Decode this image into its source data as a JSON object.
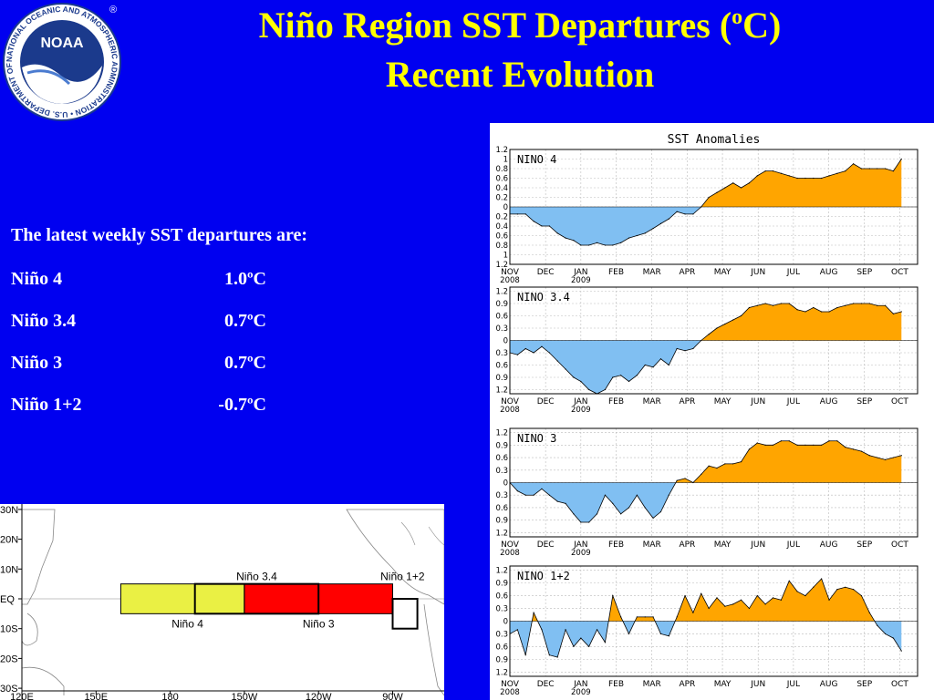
{
  "header": {
    "title_line1_main": "Niño Region SST Departures (",
    "title_line1_sup": "o",
    "title_line1_end": "C)",
    "title_line2": "Recent Evolution"
  },
  "logo": {
    "center_text": "NOAA",
    "ring_text": "NATIONAL OCEANIC AND ATMOSPHERIC ADMINISTRATION • U.S. DEPARTMENT OF COMMERCE",
    "registered_mark": "®",
    "colors": {
      "ring": "#ffffff",
      "inner": "#1b3a8c",
      "bird": "#ffffff"
    }
  },
  "summary": {
    "intro": "The latest weekly SST departures are:",
    "regions": [
      {
        "name": "Niño 4",
        "value": "1.0ºC"
      },
      {
        "name": "Niño 3.4",
        "value": "0.7ºC"
      },
      {
        "name": "Niño 3",
        "value": "0.7ºC"
      },
      {
        "name": "Niño 1+2",
        "value": "-0.7ºC"
      }
    ]
  },
  "colors": {
    "background": "#0000f0",
    "title": "#ffff00",
    "text": "#ffffff",
    "positive_fill": "#ffa500",
    "negative_fill": "#80bff2"
  },
  "chart_data": [
    {
      "type": "area",
      "title": "SST Anomalies",
      "label": "NINO 4",
      "ylim": [
        -1.2,
        1.2
      ],
      "yticks": [
        -1.2,
        -1,
        -0.8,
        -0.6,
        -0.4,
        -0.2,
        0,
        0.2,
        0.4,
        0.6,
        0.8,
        1,
        1.2
      ],
      "yticklabels": [
        "1.2",
        "1",
        "0.8",
        "0.6",
        "0.4",
        "0.2",
        "0",
        "0.2",
        "0.4",
        "0.6",
        "0.8",
        "1",
        "1.2"
      ],
      "xlim": [
        2008.833,
        2009.792
      ],
      "xticks": [
        {
          "x": 2008.833,
          "label": "NOV",
          "year": "2008"
        },
        {
          "x": 2008.917,
          "label": "DEC",
          "year": ""
        },
        {
          "x": 2009.0,
          "label": "JAN",
          "year": "2009"
        },
        {
          "x": 2009.083,
          "label": "FEB",
          "year": ""
        },
        {
          "x": 2009.167,
          "label": "MAR",
          "year": ""
        },
        {
          "x": 2009.25,
          "label": "APR",
          "year": ""
        },
        {
          "x": 2009.333,
          "label": "MAY",
          "year": ""
        },
        {
          "x": 2009.417,
          "label": "JUN",
          "year": ""
        },
        {
          "x": 2009.5,
          "label": "JUL",
          "year": ""
        },
        {
          "x": 2009.583,
          "label": "AUG",
          "year": ""
        },
        {
          "x": 2009.667,
          "label": "SEP",
          "year": ""
        },
        {
          "x": 2009.75,
          "label": "OCT",
          "year": ""
        }
      ],
      "grid": true,
      "x": [
        2008.833,
        2008.851,
        2008.87,
        2008.889,
        2008.908,
        2008.926,
        2008.945,
        2008.964,
        2008.983,
        2009.0,
        2009.019,
        2009.038,
        2009.057,
        2009.075,
        2009.094,
        2009.113,
        2009.132,
        2009.151,
        2009.17,
        2009.188,
        2009.207,
        2009.226,
        2009.245,
        2009.264,
        2009.283,
        2009.301,
        2009.32,
        2009.339,
        2009.358,
        2009.377,
        2009.396,
        2009.415,
        2009.434,
        2009.452,
        2009.471,
        2009.49,
        2009.509,
        2009.528,
        2009.547,
        2009.566,
        2009.584,
        2009.603,
        2009.622,
        2009.641,
        2009.66,
        2009.679,
        2009.697,
        2009.716,
        2009.735,
        2009.754
      ],
      "values": [
        -0.15,
        -0.15,
        -0.15,
        -0.3,
        -0.4,
        -0.4,
        -0.55,
        -0.65,
        -0.7,
        -0.8,
        -0.8,
        -0.75,
        -0.8,
        -0.8,
        -0.75,
        -0.65,
        -0.6,
        -0.55,
        -0.45,
        -0.35,
        -0.25,
        -0.1,
        -0.15,
        -0.15,
        0.0,
        0.2,
        0.3,
        0.4,
        0.5,
        0.4,
        0.5,
        0.65,
        0.75,
        0.75,
        0.7,
        0.65,
        0.6,
        0.6,
        0.6,
        0.6,
        0.65,
        0.7,
        0.75,
        0.9,
        0.8,
        0.8,
        0.8,
        0.8,
        0.75,
        1.0
      ]
    },
    {
      "type": "area",
      "label": "NINO 3.4",
      "ylim": [
        -1.3,
        1.3
      ],
      "yticks": [
        -1.2,
        -0.9,
        -0.6,
        -0.3,
        0,
        0.3,
        0.6,
        0.9,
        1.2
      ],
      "yticklabels": [
        "1.2",
        "0.9",
        "0.6",
        "0.3",
        "0",
        "0.3",
        "0.6",
        "0.9",
        "1.2"
      ],
      "xlim": [
        2008.833,
        2009.792
      ],
      "xticks": [
        {
          "x": 2008.833,
          "label": "NOV",
          "year": "2008"
        },
        {
          "x": 2008.917,
          "label": "DEC",
          "year": ""
        },
        {
          "x": 2009.0,
          "label": "JAN",
          "year": "2009"
        },
        {
          "x": 2009.083,
          "label": "FEB",
          "year": ""
        },
        {
          "x": 2009.167,
          "label": "MAR",
          "year": ""
        },
        {
          "x": 2009.25,
          "label": "APR",
          "year": ""
        },
        {
          "x": 2009.333,
          "label": "MAY",
          "year": ""
        },
        {
          "x": 2009.417,
          "label": "JUN",
          "year": ""
        },
        {
          "x": 2009.5,
          "label": "JUL",
          "year": ""
        },
        {
          "x": 2009.583,
          "label": "AUG",
          "year": ""
        },
        {
          "x": 2009.667,
          "label": "SEP",
          "year": ""
        },
        {
          "x": 2009.75,
          "label": "OCT",
          "year": ""
        }
      ],
      "grid": true,
      "x": [
        2008.833,
        2008.851,
        2008.87,
        2008.889,
        2008.908,
        2008.926,
        2008.945,
        2008.964,
        2008.983,
        2009.0,
        2009.019,
        2009.038,
        2009.057,
        2009.075,
        2009.094,
        2009.113,
        2009.132,
        2009.151,
        2009.17,
        2009.188,
        2009.207,
        2009.226,
        2009.245,
        2009.264,
        2009.283,
        2009.301,
        2009.32,
        2009.339,
        2009.358,
        2009.377,
        2009.396,
        2009.415,
        2009.434,
        2009.452,
        2009.471,
        2009.49,
        2009.509,
        2009.528,
        2009.547,
        2009.566,
        2009.584,
        2009.603,
        2009.622,
        2009.641,
        2009.66,
        2009.679,
        2009.697,
        2009.716,
        2009.735,
        2009.754
      ],
      "values": [
        -0.3,
        -0.35,
        -0.2,
        -0.3,
        -0.15,
        -0.3,
        -0.5,
        -0.7,
        -0.9,
        -1.0,
        -1.2,
        -1.3,
        -1.2,
        -0.9,
        -0.85,
        -1.0,
        -0.85,
        -0.6,
        -0.65,
        -0.45,
        -0.6,
        -0.2,
        -0.25,
        -0.2,
        0.0,
        0.15,
        0.3,
        0.4,
        0.5,
        0.6,
        0.8,
        0.85,
        0.9,
        0.85,
        0.9,
        0.9,
        0.75,
        0.7,
        0.8,
        0.7,
        0.7,
        0.8,
        0.85,
        0.9,
        0.9,
        0.9,
        0.85,
        0.85,
        0.65,
        0.7
      ]
    },
    {
      "type": "area",
      "label": "NINO 3",
      "ylim": [
        -1.3,
        1.3
      ],
      "yticks": [
        -1.2,
        -0.9,
        -0.6,
        -0.3,
        0,
        0.3,
        0.6,
        0.9,
        1.2
      ],
      "yticklabels": [
        "1.2",
        "0.9",
        "0.6",
        "0.3",
        "0",
        "0.3",
        "0.6",
        "0.9",
        "1.2"
      ],
      "xlim": [
        2008.833,
        2009.792
      ],
      "xticks": [
        {
          "x": 2008.833,
          "label": "NOV",
          "year": "2008"
        },
        {
          "x": 2008.917,
          "label": "DEC",
          "year": ""
        },
        {
          "x": 2009.0,
          "label": "JAN",
          "year": "2009"
        },
        {
          "x": 2009.083,
          "label": "FEB",
          "year": ""
        },
        {
          "x": 2009.167,
          "label": "MAR",
          "year": ""
        },
        {
          "x": 2009.25,
          "label": "APR",
          "year": ""
        },
        {
          "x": 2009.333,
          "label": "MAY",
          "year": ""
        },
        {
          "x": 2009.417,
          "label": "JUN",
          "year": ""
        },
        {
          "x": 2009.5,
          "label": "JUL",
          "year": ""
        },
        {
          "x": 2009.583,
          "label": "AUG",
          "year": ""
        },
        {
          "x": 2009.667,
          "label": "SEP",
          "year": ""
        },
        {
          "x": 2009.75,
          "label": "OCT",
          "year": ""
        }
      ],
      "grid": true,
      "x": [
        2008.833,
        2008.851,
        2008.87,
        2008.889,
        2008.908,
        2008.926,
        2008.945,
        2008.964,
        2008.983,
        2009.0,
        2009.019,
        2009.038,
        2009.057,
        2009.075,
        2009.094,
        2009.113,
        2009.132,
        2009.151,
        2009.17,
        2009.188,
        2009.207,
        2009.226,
        2009.245,
        2009.264,
        2009.283,
        2009.301,
        2009.32,
        2009.339,
        2009.358,
        2009.377,
        2009.396,
        2009.415,
        2009.434,
        2009.452,
        2009.471,
        2009.49,
        2009.509,
        2009.528,
        2009.547,
        2009.566,
        2009.584,
        2009.603,
        2009.622,
        2009.641,
        2009.66,
        2009.679,
        2009.697,
        2009.716,
        2009.735,
        2009.754
      ],
      "values": [
        0.0,
        -0.2,
        -0.3,
        -0.3,
        -0.15,
        -0.3,
        -0.45,
        -0.5,
        -0.75,
        -0.95,
        -0.95,
        -0.75,
        -0.3,
        -0.5,
        -0.75,
        -0.6,
        -0.3,
        -0.6,
        -0.85,
        -0.7,
        -0.3,
        0.05,
        0.1,
        0.0,
        0.2,
        0.4,
        0.35,
        0.45,
        0.45,
        0.5,
        0.8,
        0.95,
        0.9,
        0.9,
        1.0,
        1.0,
        0.9,
        0.9,
        0.9,
        0.9,
        1.0,
        1.0,
        0.85,
        0.8,
        0.75,
        0.65,
        0.6,
        0.55,
        0.6,
        0.65
      ]
    },
    {
      "type": "area",
      "label": "NINO 1+2",
      "ylim": [
        -1.3,
        1.3
      ],
      "yticks": [
        -1.2,
        -0.9,
        -0.6,
        -0.3,
        0,
        0.3,
        0.6,
        0.9,
        1.2
      ],
      "yticklabels": [
        "1.2",
        "0.9",
        "0.6",
        "0.3",
        "0",
        "0.3",
        "0.6",
        "0.9",
        "1.2"
      ],
      "xlim": [
        2008.833,
        2009.792
      ],
      "xticks": [
        {
          "x": 2008.833,
          "label": "NOV",
          "year": "2008"
        },
        {
          "x": 2008.917,
          "label": "DEC",
          "year": ""
        },
        {
          "x": 2009.0,
          "label": "JAN",
          "year": "2009"
        },
        {
          "x": 2009.083,
          "label": "FEB",
          "year": ""
        },
        {
          "x": 2009.167,
          "label": "MAR",
          "year": ""
        },
        {
          "x": 2009.25,
          "label": "APR",
          "year": ""
        },
        {
          "x": 2009.333,
          "label": "MAY",
          "year": ""
        },
        {
          "x": 2009.417,
          "label": "JUN",
          "year": ""
        },
        {
          "x": 2009.5,
          "label": "JUL",
          "year": ""
        },
        {
          "x": 2009.583,
          "label": "AUG",
          "year": ""
        },
        {
          "x": 2009.667,
          "label": "SEP",
          "year": ""
        },
        {
          "x": 2009.75,
          "label": "OCT",
          "year": ""
        }
      ],
      "grid": true,
      "x": [
        2008.833,
        2008.851,
        2008.87,
        2008.889,
        2008.908,
        2008.926,
        2008.945,
        2008.964,
        2008.983,
        2009.0,
        2009.019,
        2009.038,
        2009.057,
        2009.075,
        2009.094,
        2009.113,
        2009.132,
        2009.151,
        2009.17,
        2009.188,
        2009.207,
        2009.226,
        2009.245,
        2009.264,
        2009.283,
        2009.301,
        2009.32,
        2009.339,
        2009.358,
        2009.377,
        2009.396,
        2009.415,
        2009.434,
        2009.452,
        2009.471,
        2009.49,
        2009.509,
        2009.528,
        2009.547,
        2009.566,
        2009.584,
        2009.603,
        2009.622,
        2009.641,
        2009.66,
        2009.679,
        2009.697,
        2009.716,
        2009.735,
        2009.754
      ],
      "values": [
        -0.3,
        -0.2,
        -0.8,
        0.2,
        -0.2,
        -0.8,
        -0.85,
        -0.2,
        -0.6,
        -0.4,
        -0.6,
        -0.2,
        -0.5,
        0.6,
        0.1,
        -0.3,
        0.1,
        0.1,
        0.1,
        -0.3,
        -0.35,
        0.1,
        0.6,
        0.2,
        0.65,
        0.3,
        0.55,
        0.35,
        0.4,
        0.5,
        0.3,
        0.6,
        0.4,
        0.55,
        0.5,
        0.95,
        0.7,
        0.6,
        0.8,
        1.0,
        0.5,
        0.75,
        0.8,
        0.75,
        0.6,
        0.2,
        -0.1,
        -0.3,
        -0.4,
        -0.7
      ]
    }
  ],
  "map": {
    "lat_labels": [
      "30N",
      "20N",
      "10N",
      "EQ",
      "10S",
      "20S",
      "30S"
    ],
    "lon_labels": [
      "120E",
      "150E",
      "180",
      "150W",
      "120W",
      "90W"
    ],
    "regions": [
      {
        "name": "Niño 4",
        "color": "#eaf044"
      },
      {
        "name": "Niño 3.4",
        "color": "#eaf044"
      },
      {
        "name": "Niño 3",
        "color": "#ff0000"
      },
      {
        "name": "Niño 1+2",
        "color": "#ffffff"
      }
    ]
  }
}
